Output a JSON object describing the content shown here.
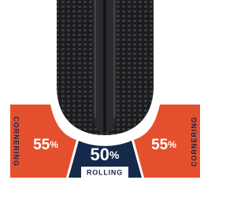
{
  "panels": [
    {
      "label": "CORNERING",
      "value": "55",
      "unit": "%"
    },
    {
      "label": "ROLLING",
      "value": "50",
      "unit": "%"
    },
    {
      "label": "CORNERING",
      "value": "55",
      "unit": "%"
    }
  ]
}
